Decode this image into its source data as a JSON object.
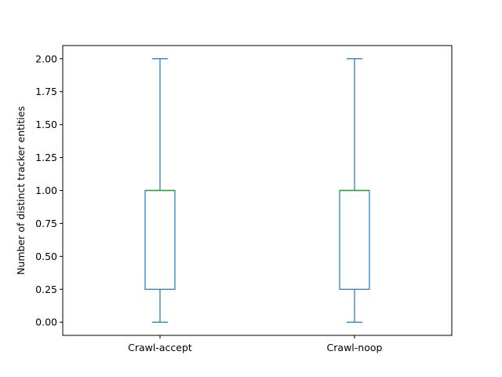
{
  "chart_data": {
    "type": "box",
    "categories": [
      "Crawl-accept",
      "Crawl-noop"
    ],
    "series": [
      {
        "category": "Crawl-accept",
        "min": 0.0,
        "q1": 0.25,
        "median": 1.0,
        "q3": 1.0,
        "max": 2.0
      },
      {
        "category": "Crawl-noop",
        "min": 0.0,
        "q1": 0.25,
        "median": 1.0,
        "q3": 1.0,
        "max": 2.0
      }
    ],
    "title": "",
    "xlabel": "",
    "ylabel": "Number of distinct tracker entities",
    "ylim": [
      -0.1,
      2.1
    ],
    "yticks": [
      "0.00",
      "0.25",
      "0.50",
      "0.75",
      "1.00",
      "1.25",
      "1.50",
      "1.75",
      "2.00"
    ],
    "grid": false,
    "colors": {
      "box": "#1f77b4",
      "median": "#2ca02c",
      "axis": "#000000"
    }
  }
}
